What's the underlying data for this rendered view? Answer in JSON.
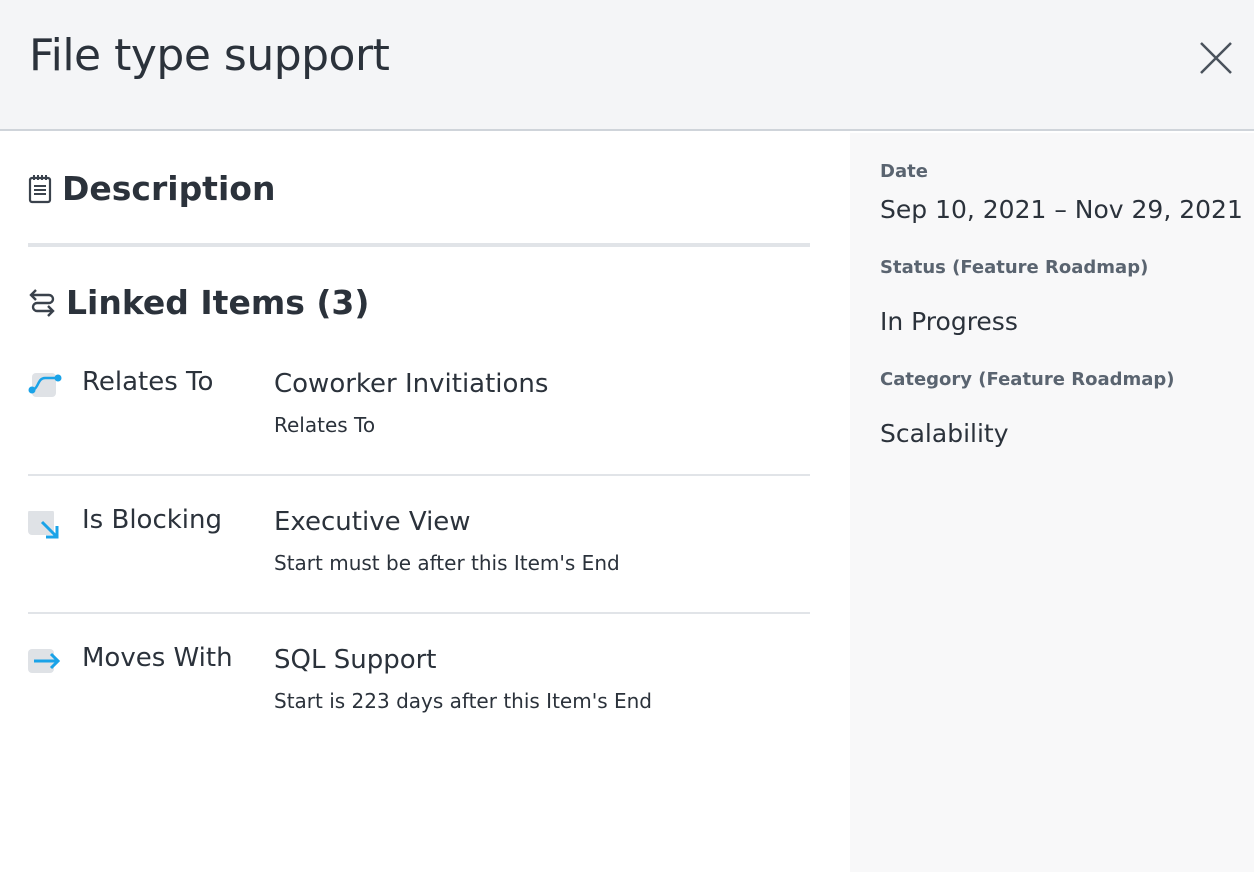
{
  "header": {
    "title": "File type support",
    "close_icon": "close-icon"
  },
  "description": {
    "heading": "Description",
    "icon": "notepad-icon"
  },
  "linked": {
    "heading": "Linked Items (3)",
    "icon": "swap-arrows-icon",
    "accent": "#1aa3e8",
    "items": [
      {
        "type": "Relates To",
        "name": "Coworker Invitiations",
        "detail": "Relates To",
        "icon": "relates-to-icon"
      },
      {
        "type": "Is Blocking",
        "name": "Executive View",
        "detail": "Start must be after this Item's End",
        "icon": "is-blocking-icon"
      },
      {
        "type": "Moves With",
        "name": "SQL Support",
        "detail": "Start is 223 days after this Item's End",
        "icon": "moves-with-icon"
      }
    ]
  },
  "sidebar": {
    "date_label": "Date",
    "date_value": "Sep 10, 2021 – Nov 29, 2021",
    "status_label": "Status (Feature Roadmap)",
    "status_value": "In Progress",
    "category_label": "Category (Feature Roadmap)",
    "category_value": "Scalability"
  }
}
